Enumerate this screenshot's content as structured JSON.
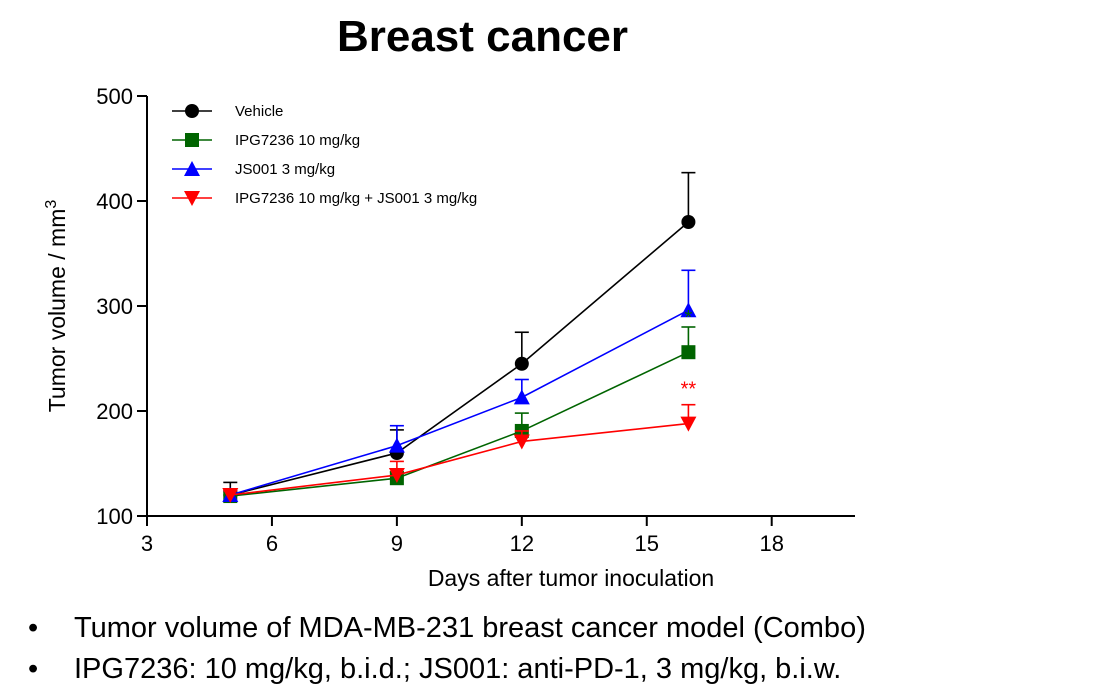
{
  "title": "Breast cancer",
  "chart_data": {
    "type": "line",
    "xlabel": "Days after tumor inoculation",
    "ylabel": "Tumor volume / mm",
    "ylabel_sup": "3",
    "xlim": [
      3,
      20
    ],
    "ylim": [
      100,
      500
    ],
    "xticks": [
      3,
      6,
      9,
      12,
      15,
      18
    ],
    "yticks": [
      100,
      200,
      300,
      400,
      500
    ],
    "x": [
      5,
      9,
      12,
      16
    ],
    "legend_position": "top-left",
    "grid": false,
    "series": [
      {
        "name": "Vehicle",
        "color": "#000000",
        "marker": "circle",
        "values": [
          120,
          160,
          245,
          380
        ],
        "errors": [
          12,
          22,
          30,
          47
        ]
      },
      {
        "name": "IPG7236 10 mg/kg",
        "color": "#006400",
        "marker": "square",
        "values": [
          119,
          136,
          181,
          256
        ],
        "errors": [
          4,
          6,
          17,
          24
        ]
      },
      {
        "name": "JS001 3 mg/kg",
        "color": "#0000ff",
        "marker": "triangle-up",
        "values": [
          120,
          167,
          213,
          296
        ],
        "errors": [
          4,
          19,
          17,
          38
        ]
      },
      {
        "name": "IPG7236 10 mg/kg + JS001 3 mg/kg",
        "color": "#ff0000",
        "marker": "triangle-down",
        "values": [
          120,
          139,
          171,
          188
        ],
        "errors": [
          4,
          13,
          10,
          18
        ]
      }
    ],
    "annotations": [
      {
        "text": "*",
        "x": 16,
        "y": 283,
        "color": "#006400"
      },
      {
        "text": "**",
        "x": 16,
        "y": 215,
        "color": "#ff0000"
      }
    ]
  },
  "notes": [
    "Tumor volume of MDA-MB-231 breast cancer model (Combo)",
    "IPG7236: 10 mg/kg, b.i.d.; JS001: anti-PD-1, 3 mg/kg, b.i.w."
  ],
  "bullet_char": "•"
}
